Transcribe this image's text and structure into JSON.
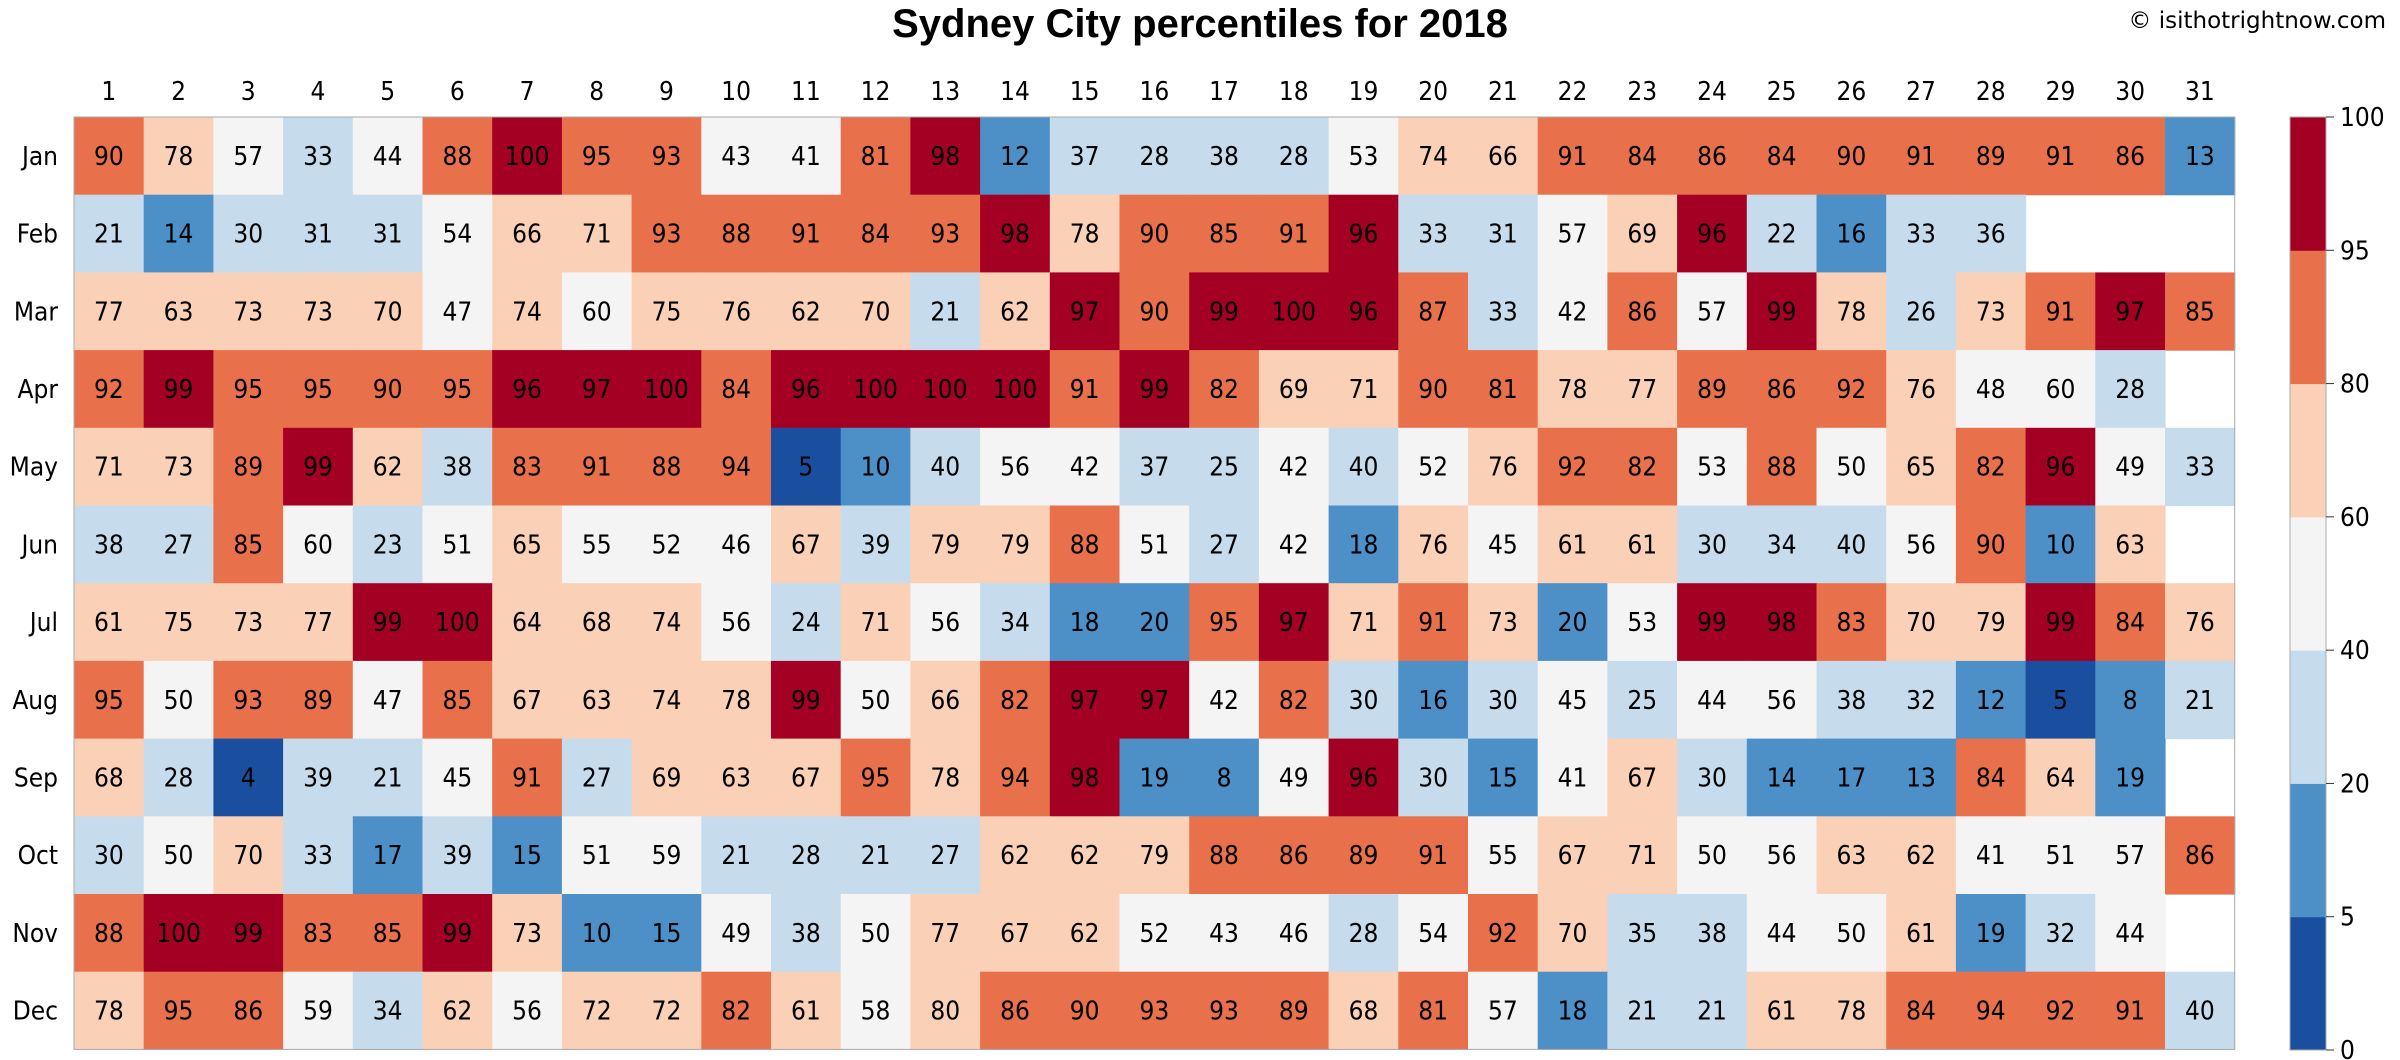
{
  "chart_data": {
    "type": "heatmap",
    "title": "Sydney City percentiles for 2018",
    "copyright": "© isithotrightnow.com",
    "x_labels": [
      "1",
      "2",
      "3",
      "4",
      "5",
      "6",
      "7",
      "8",
      "9",
      "10",
      "11",
      "12",
      "13",
      "14",
      "15",
      "16",
      "17",
      "18",
      "19",
      "20",
      "21",
      "22",
      "23",
      "24",
      "25",
      "26",
      "27",
      "28",
      "29",
      "30",
      "31"
    ],
    "y_labels": [
      "Jan",
      "Feb",
      "Mar",
      "Apr",
      "May",
      "Jun",
      "Jul",
      "Aug",
      "Sep",
      "Oct",
      "Nov",
      "Dec"
    ],
    "values": [
      [
        90,
        78,
        57,
        33,
        44,
        88,
        100,
        95,
        93,
        43,
        41,
        81,
        98,
        12,
        37,
        28,
        38,
        28,
        53,
        74,
        66,
        91,
        84,
        86,
        84,
        90,
        91,
        89,
        91,
        86,
        13
      ],
      [
        21,
        14,
        30,
        31,
        31,
        54,
        66,
        71,
        93,
        88,
        91,
        84,
        93,
        98,
        78,
        90,
        85,
        91,
        96,
        33,
        31,
        57,
        69,
        96,
        22,
        16,
        33,
        36,
        null,
        null,
        null
      ],
      [
        77,
        63,
        73,
        73,
        70,
        47,
        74,
        60,
        75,
        76,
        62,
        70,
        21,
        62,
        97,
        90,
        99,
        100,
        96,
        87,
        33,
        42,
        86,
        57,
        99,
        78,
        26,
        73,
        91,
        97,
        85
      ],
      [
        92,
        99,
        95,
        95,
        90,
        95,
        96,
        97,
        100,
        84,
        96,
        100,
        100,
        100,
        91,
        99,
        82,
        69,
        71,
        90,
        81,
        78,
        77,
        89,
        86,
        92,
        76,
        48,
        60,
        28,
        null
      ],
      [
        71,
        73,
        89,
        99,
        62,
        38,
        83,
        91,
        88,
        94,
        5,
        10,
        40,
        56,
        42,
        37,
        25,
        42,
        40,
        52,
        76,
        92,
        82,
        53,
        88,
        50,
        65,
        82,
        96,
        49,
        33
      ],
      [
        38,
        27,
        85,
        60,
        23,
        51,
        65,
        55,
        52,
        46,
        67,
        39,
        79,
        79,
        88,
        51,
        27,
        42,
        18,
        76,
        45,
        61,
        61,
        30,
        34,
        40,
        56,
        90,
        10,
        63,
        null
      ],
      [
        61,
        75,
        73,
        77,
        99,
        100,
        64,
        68,
        74,
        56,
        24,
        71,
        56,
        34,
        18,
        20,
        95,
        97,
        71,
        91,
        73,
        20,
        53,
        99,
        98,
        83,
        70,
        79,
        99,
        84,
        76
      ],
      [
        95,
        50,
        93,
        89,
        47,
        85,
        67,
        63,
        74,
        78,
        99,
        50,
        66,
        82,
        97,
        97,
        42,
        82,
        30,
        16,
        30,
        45,
        25,
        44,
        56,
        38,
        32,
        12,
        5,
        8,
        21
      ],
      [
        68,
        28,
        4,
        39,
        21,
        45,
        91,
        27,
        69,
        63,
        67,
        95,
        78,
        94,
        98,
        19,
        8,
        49,
        96,
        30,
        15,
        41,
        67,
        30,
        14,
        17,
        13,
        84,
        64,
        19,
        null
      ],
      [
        30,
        50,
        70,
        33,
        17,
        39,
        15,
        51,
        59,
        21,
        28,
        21,
        27,
        62,
        62,
        79,
        88,
        86,
        89,
        91,
        55,
        67,
        71,
        50,
        56,
        63,
        62,
        41,
        51,
        57,
        86
      ],
      [
        88,
        100,
        99,
        83,
        85,
        99,
        73,
        10,
        15,
        49,
        38,
        50,
        77,
        67,
        62,
        52,
        43,
        46,
        28,
        54,
        92,
        70,
        35,
        38,
        44,
        50,
        61,
        19,
        32,
        44,
        null
      ],
      [
        78,
        95,
        86,
        59,
        34,
        62,
        56,
        72,
        72,
        82,
        61,
        58,
        80,
        86,
        90,
        93,
        93,
        89,
        68,
        81,
        57,
        18,
        21,
        21,
        61,
        78,
        84,
        94,
        92,
        91,
        40
      ]
    ],
    "colorbar": {
      "ticks": [
        "0",
        "5",
        "20",
        "40",
        "60",
        "80",
        "95",
        "100"
      ],
      "bins": [
        {
          "from": 0,
          "to": 5,
          "color": "#1a4fa0"
        },
        {
          "from": 5,
          "to": 20,
          "color": "#4d90c8"
        },
        {
          "from": 20,
          "to": 40,
          "color": "#c6dcec"
        },
        {
          "from": 40,
          "to": 60,
          "color": "#f4f4f4"
        },
        {
          "from": 60,
          "to": 80,
          "color": "#fad0b7"
        },
        {
          "from": 80,
          "to": 95,
          "color": "#e8714c"
        },
        {
          "from": 95,
          "to": 100,
          "color": "#a30023"
        }
      ]
    }
  }
}
